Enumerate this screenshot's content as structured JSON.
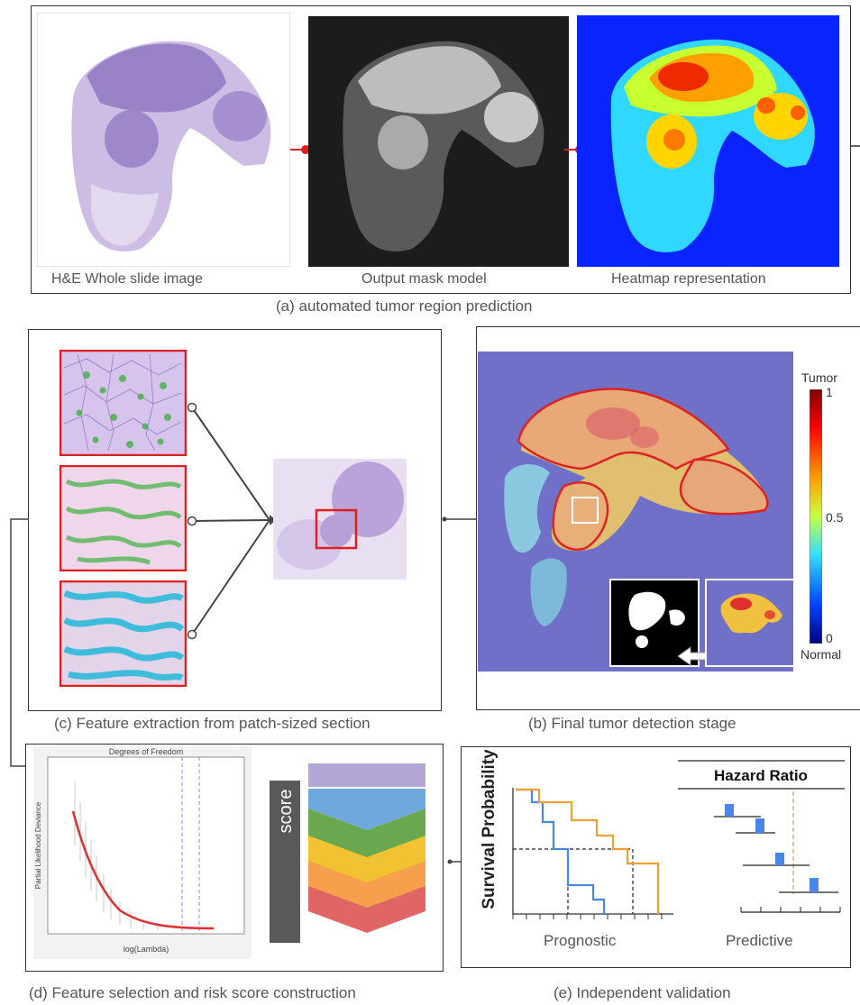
{
  "panel_a": {
    "caption": "(a)  automated tumor region prediction",
    "image_labels": [
      "H&E Whole slide image",
      "Output mask model",
      "Heatmap representation"
    ]
  },
  "panel_b": {
    "caption": "(b) Final tumor detection stage",
    "colorbar": {
      "top_label": "Tumor",
      "bottom_label": "Normal",
      "ticks": [
        "1",
        "0.5",
        "0"
      ]
    }
  },
  "panel_c": {
    "caption": "(c) Feature extraction from patch-sized section"
  },
  "panel_d": {
    "caption": "(d) Feature selection and risk score construction",
    "plot_title": "Degrees of Freedom",
    "xlabel": "log(Lambda)",
    "ylabel": "Partial Likelihood Deviance",
    "score_label": "score",
    "colors": [
      "#b4a7d6",
      "#6fa8dc",
      "#6aa84f",
      "#f1c232",
      "#f6a04d",
      "#e06666"
    ]
  },
  "panel_e": {
    "caption": "(e) Independent validation",
    "ylabel": "Survival Probability",
    "left_label": "Prognostic",
    "right_label": "Predictive",
    "hr_title": "Hazard Ratio",
    "colors": {
      "orange": "#f0a030",
      "blue": "#4a86e8"
    }
  }
}
